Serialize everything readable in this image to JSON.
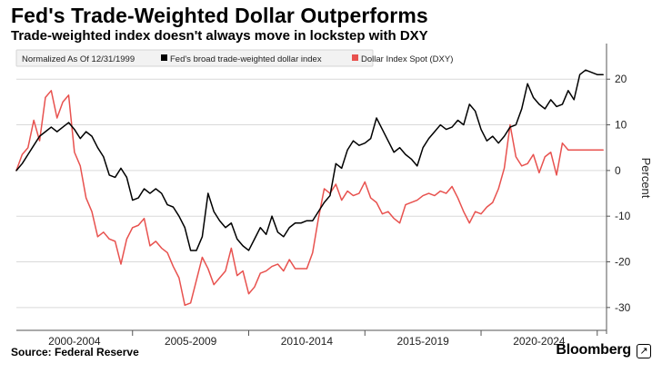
{
  "title": "Fed's Trade-Weighted Dollar Outperforms",
  "subtitle": "Trade-weighted index doesn't always move in lockstep with DXY",
  "source": "Source: Federal Reserve",
  "brand": "Bloomberg",
  "brand_mark": "↗",
  "colors": {
    "series_broad": "#000000",
    "series_dxy": "#e8524f",
    "grid": "#d9d9d9"
  },
  "chart_data": {
    "type": "line",
    "note": "Normalized As Of 12/31/1999",
    "ylabel": "Percent",
    "ylim": [
      -35,
      27
    ],
    "yticks": [
      20,
      10,
      0,
      -10,
      -20,
      -30
    ],
    "xlim": [
      2000.0,
      2025.4
    ],
    "xlabel_groups": [
      {
        "label": "2000-2004",
        "center": 2002.5
      },
      {
        "label": "2005-2009",
        "center": 2007.5
      },
      {
        "label": "2010-2014",
        "center": 2012.5
      },
      {
        "label": "2015-2019",
        "center": 2017.5
      },
      {
        "label": "2020-2024",
        "center": 2022.5
      }
    ],
    "xlabel_separators": [
      2005.0,
      2010.0,
      2015.0,
      2020.0,
      2025.0
    ],
    "series": [
      {
        "name": "Fed's broad trade-weighted dollar index",
        "color": "#000000",
        "x": [
          2000.0,
          2000.25,
          2000.5,
          2000.75,
          2001.0,
          2001.25,
          2001.5,
          2001.75,
          2002.0,
          2002.25,
          2002.5,
          2002.75,
          2003.0,
          2003.25,
          2003.5,
          2003.75,
          2004.0,
          2004.25,
          2004.5,
          2004.75,
          2005.0,
          2005.25,
          2005.5,
          2005.75,
          2006.0,
          2006.25,
          2006.5,
          2006.75,
          2007.0,
          2007.25,
          2007.5,
          2007.75,
          2008.0,
          2008.25,
          2008.5,
          2008.75,
          2009.0,
          2009.25,
          2009.5,
          2009.75,
          2010.0,
          2010.25,
          2010.5,
          2010.75,
          2011.0,
          2011.25,
          2011.5,
          2011.75,
          2012.0,
          2012.25,
          2012.5,
          2012.75,
          2013.0,
          2013.25,
          2013.5,
          2013.75,
          2014.0,
          2014.25,
          2014.5,
          2014.75,
          2015.0,
          2015.25,
          2015.5,
          2015.75,
          2016.0,
          2016.25,
          2016.5,
          2016.75,
          2017.0,
          2017.25,
          2017.5,
          2017.75,
          2018.0,
          2018.25,
          2018.5,
          2018.75,
          2019.0,
          2019.25,
          2019.5,
          2019.75,
          2020.0,
          2020.25,
          2020.5,
          2020.75,
          2021.0,
          2021.25,
          2021.5,
          2021.75,
          2022.0,
          2022.25,
          2022.5,
          2022.75,
          2023.0,
          2023.25,
          2023.5,
          2023.75,
          2024.0,
          2024.25,
          2024.5,
          2024.75,
          2025.0,
          2025.25
        ],
        "values": [
          0,
          1.5,
          3.5,
          5.5,
          7.5,
          8.5,
          9.5,
          8.5,
          9.5,
          10.5,
          9.0,
          7.0,
          8.5,
          7.5,
          5.0,
          3.0,
          -1.0,
          -1.5,
          0.5,
          -1.5,
          -6.5,
          -6.0,
          -4.0,
          -5.0,
          -4.0,
          -5.0,
          -7.5,
          -8.0,
          -10.0,
          -12.5,
          -17.5,
          -17.5,
          -14.5,
          -5.0,
          -9.0,
          -11.0,
          -12.5,
          -11.5,
          -15.0,
          -16.5,
          -17.5,
          -15.0,
          -12.5,
          -14.0,
          -10.0,
          -13.5,
          -14.5,
          -12.5,
          -11.5,
          -11.5,
          -11.0,
          -11.0,
          -9.0,
          -7.0,
          -5.5,
          1.5,
          0.5,
          4.5,
          6.5,
          5.5,
          6.0,
          7.0,
          11.5,
          9.0,
          6.5,
          4.0,
          5.0,
          3.5,
          2.5,
          1.0,
          5.0,
          7.0,
          8.5,
          10.0,
          9.0,
          9.5,
          11.0,
          10.0,
          14.5,
          13.0,
          9.0,
          6.5,
          7.5,
          6.0,
          7.5,
          9.5,
          10.0,
          13.5,
          19.0,
          16.0,
          14.5,
          13.5,
          15.5,
          14.0,
          14.5,
          17.5,
          15.5,
          21.0,
          22.0,
          21.5,
          21.0,
          21.0
        ]
      },
      {
        "name": "Dollar Index Spot (DXY)",
        "color": "#e8524f",
        "x": [
          2000.0,
          2000.25,
          2000.5,
          2000.75,
          2001.0,
          2001.25,
          2001.5,
          2001.75,
          2002.0,
          2002.25,
          2002.5,
          2002.75,
          2003.0,
          2003.25,
          2003.5,
          2003.75,
          2004.0,
          2004.25,
          2004.5,
          2004.75,
          2005.0,
          2005.25,
          2005.5,
          2005.75,
          2006.0,
          2006.25,
          2006.5,
          2006.75,
          2007.0,
          2007.25,
          2007.5,
          2007.75,
          2008.0,
          2008.25,
          2008.5,
          2008.75,
          2009.0,
          2009.25,
          2009.5,
          2009.75,
          2010.0,
          2010.25,
          2010.5,
          2010.75,
          2011.0,
          2011.25,
          2011.5,
          2011.75,
          2012.0,
          2012.25,
          2012.5,
          2012.75,
          2013.0,
          2013.25,
          2013.5,
          2013.75,
          2014.0,
          2014.25,
          2014.5,
          2014.75,
          2015.0,
          2015.25,
          2015.5,
          2015.75,
          2016.0,
          2016.25,
          2016.5,
          2016.75,
          2017.0,
          2017.25,
          2017.5,
          2017.75,
          2018.0,
          2018.25,
          2018.5,
          2018.75,
          2019.0,
          2019.25,
          2019.5,
          2019.75,
          2020.0,
          2020.25,
          2020.5,
          2020.75,
          2021.0,
          2021.25,
          2021.5,
          2021.75,
          2022.0,
          2022.25,
          2022.5,
          2022.75,
          2023.0,
          2023.25,
          2023.5,
          2023.75,
          2024.0,
          2024.25,
          2024.5,
          2024.75,
          2025.0,
          2025.25
        ],
        "values": [
          0,
          3.5,
          5.0,
          11.0,
          6.5,
          16.0,
          17.5,
          11.5,
          15.0,
          16.5,
          4.0,
          1.0,
          -6.0,
          -9.0,
          -14.5,
          -13.5,
          -15.0,
          -15.5,
          -20.5,
          -15.0,
          -12.5,
          -12.0,
          -10.5,
          -16.5,
          -15.5,
          -17.0,
          -18.0,
          -21.0,
          -23.5,
          -29.5,
          -29.0,
          -24.0,
          -19.0,
          -21.5,
          -25.0,
          -23.5,
          -22.0,
          -17.0,
          -23.0,
          -22.0,
          -27.0,
          -25.5,
          -22.5,
          -22.0,
          -21.0,
          -20.5,
          -22.0,
          -19.5,
          -21.5,
          -21.5,
          -21.5,
          -18.0,
          -10.5,
          -4.0,
          -5.0,
          -3.0,
          -6.5,
          -4.5,
          -5.5,
          -5.0,
          -2.5,
          -6.0,
          -7.0,
          -9.5,
          -9.0,
          -10.5,
          -11.5,
          -7.5,
          -7.0,
          -6.5,
          -5.5,
          -5.0,
          -5.5,
          -4.5,
          -5.0,
          -3.5,
          -6.0,
          -9.0,
          -11.5,
          -9.0,
          -9.5,
          -8.0,
          -7.0,
          -4.0,
          0.5,
          10.0,
          3.0,
          1.0,
          1.5,
          3.5,
          -0.5,
          3.0,
          4.0,
          -1.0,
          6.0,
          4.5,
          4.5,
          4.5,
          4.5,
          4.5,
          4.5,
          4.5
        ]
      }
    ]
  }
}
